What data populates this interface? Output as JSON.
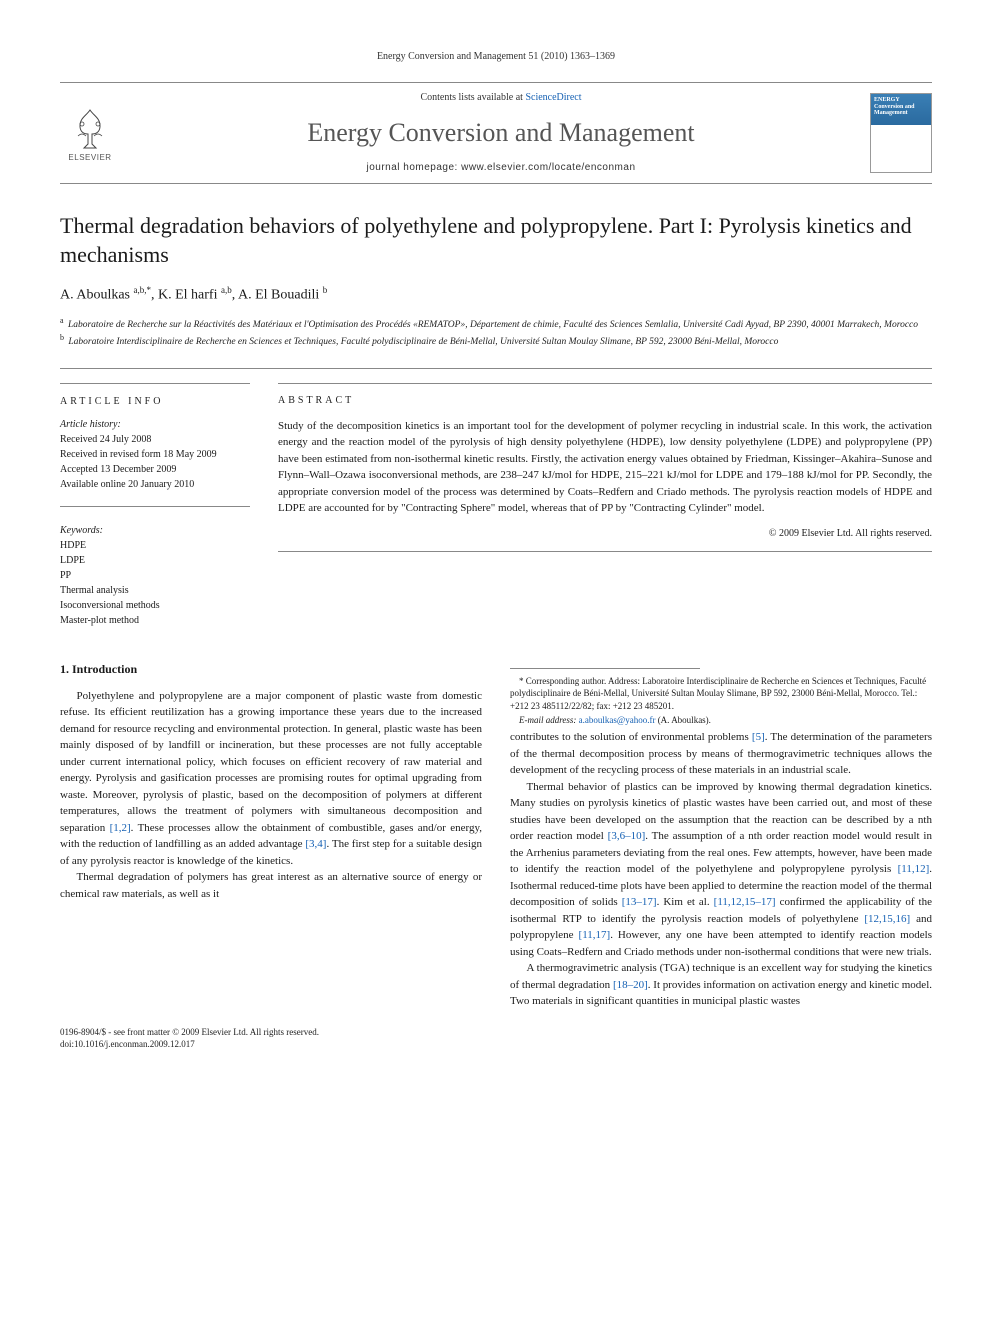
{
  "header": {
    "citation": "Energy Conversion and Management 51 (2010) 1363–1369",
    "contents_prefix": "Contents lists available at ",
    "contents_link": "ScienceDirect",
    "journal_title": "Energy Conversion and Management",
    "homepage_prefix": "journal homepage: ",
    "homepage_url": "www.elsevier.com/locate/enconman",
    "elsevier_label": "ELSEVIER",
    "cover_title": "ENERGY Conversion and Management"
  },
  "article": {
    "title": "Thermal degradation behaviors of polyethylene and polypropylene. Part I: Pyrolysis kinetics and mechanisms",
    "authors_html": "A. Aboulkas <sup>a,b,*</sup>, K. El harfi <sup>a,b</sup>, A. El Bouadili <sup>b</sup>",
    "affiliations": [
      {
        "sup": "a",
        "text": "Laboratoire de Recherche sur la Réactivités des Matériaux et l'Optimisation des Procédés «REMATOP», Département de chimie, Faculté des Sciences Semlalia, Université Cadi Ayyad, BP 2390, 40001 Marrakech, Morocco"
      },
      {
        "sup": "b",
        "text": "Laboratoire Interdisciplinaire de Recherche en Sciences et Techniques, Faculté polydisciplinaire de Béni-Mellal, Université Sultan Moulay Slimane, BP 592, 23000 Béni-Mellal, Morocco"
      }
    ]
  },
  "info": {
    "heading": "ARTICLE INFO",
    "history_label": "Article history:",
    "history": [
      "Received 24 July 2008",
      "Received in revised form 18 May 2009",
      "Accepted 13 December 2009",
      "Available online 20 January 2010"
    ],
    "keywords_label": "Keywords:",
    "keywords": [
      "HDPE",
      "LDPE",
      "PP",
      "Thermal analysis",
      "Isoconversional methods",
      "Master-plot method"
    ]
  },
  "abstract": {
    "heading": "ABSTRACT",
    "text": "Study of the decomposition kinetics is an important tool for the development of polymer recycling in industrial scale. In this work, the activation energy and the reaction model of the pyrolysis of high density polyethylene (HDPE), low density polyethylene (LDPE) and polypropylene (PP) have been estimated from non-isothermal kinetic results. Firstly, the activation energy values obtained by Friedman, Kissinger–Akahira–Sunose and Flynn–Wall–Ozawa isoconversional methods, are 238–247 kJ/mol for HDPE, 215–221 kJ/mol for LDPE and 179–188 kJ/mol for PP. Secondly, the appropriate conversion model of the process was determined by Coats–Redfern and Criado methods. The pyrolysis reaction models of HDPE and LDPE are accounted for by \"Contracting Sphere\" model, whereas that of PP by \"Contracting Cylinder\" model.",
    "copyright": "© 2009 Elsevier Ltd. All rights reserved."
  },
  "body": {
    "section_heading": "1. Introduction",
    "p1": "Polyethylene and polypropylene are a major component of plastic waste from domestic refuse. Its efficient reutilization has a growing importance these years due to the increased demand for resource recycling and environmental protection. In general, plastic waste has been mainly disposed of by landfill or incineration, but these processes are not fully acceptable under current international policy, which focuses on efficient recovery of raw material and energy. Pyrolysis and gasification processes are promising routes for optimal upgrading from waste. Moreover, pyrolysis of plastic, based on the decomposition of polymers at different temperatures, allows the treatment of polymers with simultaneous decomposition and separation ",
    "p1_ref1": "[1,2]",
    "p1_cont": ". These processes allow the obtainment of combustible, gases and/or energy, with the reduction of landfilling as an added advantage ",
    "p1_ref2": "[3,4]",
    "p1_end": ". The first step for a suitable design of any pyrolysis reactor is knowledge of the kinetics.",
    "p2": "Thermal degradation of polymers has great interest as an alternative source of energy or chemical raw materials, as well as it",
    "p3_start": "contributes to the solution of environmental problems ",
    "p3_ref1": "[5]",
    "p3_cont": ". The determination of the parameters of the thermal decomposition process by means of thermogravimetric techniques allows the development of the recycling process of these materials in an industrial scale.",
    "p4_start": "Thermal behavior of plastics can be improved by knowing thermal degradation kinetics. Many studies on pyrolysis kinetics of plastic wastes have been carried out, and most of these studies have been developed on the assumption that the reaction can be described by a nth order reaction model ",
    "p4_ref1": "[3,6–10]",
    "p4_cont1": ". The assumption of a nth order reaction model would result in the Arrhenius parameters deviating from the real ones. Few attempts, however, have been made to identify the reaction model of the polyethylene and polypropylene pyrolysis ",
    "p4_ref2": "[11,12]",
    "p4_cont2": ". Isothermal reduced-time plots have been applied to determine the reaction model of the thermal decomposition of solids ",
    "p4_ref3": "[13–17]",
    "p4_cont3": ". Kim et al. ",
    "p4_ref4": "[11,12,15–17]",
    "p4_cont4": " confirmed the applicability of the isothermal RTP to identify the pyrolysis reaction models of polyethylene ",
    "p4_ref5": "[12,15,16]",
    "p4_cont5": " and polypropylene ",
    "p4_ref6": "[11,17]",
    "p4_cont6": ". However, any one have been attempted to identify reaction models using Coats–Redfern and Criado methods under non-isothermal conditions that were new trials.",
    "p5_start": "A thermogravimetric analysis (TGA) technique is an excellent way for studying the kinetics of thermal degradation ",
    "p5_ref1": "[18–20]",
    "p5_cont": ". It provides information on activation energy and kinetic model. Two materials in significant quantities in municipal plastic wastes"
  },
  "footnotes": {
    "corresponding": "* Corresponding author. Address: Laboratoire Interdisciplinaire de Recherche en Sciences et Techniques, Faculté polydisciplinaire de Béni-Mellal, Université Sultan Moulay Slimane, BP 592, 23000 Béni-Mellal, Morocco. Tel.: +212 23 485112/22/82; fax: +212 23 485201.",
    "email_label": "E-mail address: ",
    "email": "a.aboulkas@yahoo.fr",
    "email_author": " (A. Aboulkas)."
  },
  "footer": {
    "line1": "0196-8904/$ - see front matter © 2009 Elsevier Ltd. All rights reserved.",
    "line2": "doi:10.1016/j.enconman.2009.12.017"
  },
  "colors": {
    "link": "#1560b3",
    "rule": "#888888",
    "text": "#1a1a1a",
    "elsevier_orange": "#e67817"
  }
}
